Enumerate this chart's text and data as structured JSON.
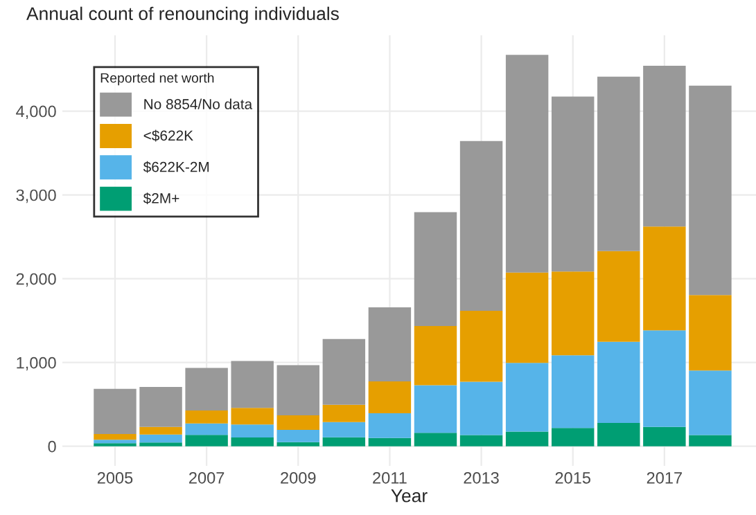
{
  "chart_data": {
    "type": "bar",
    "title": "Annual count of renouncing individuals",
    "xlabel": "Year",
    "legend_title": "Reported net worth",
    "x": [
      2005,
      2006,
      2007,
      2008,
      2009,
      2010,
      2011,
      2012,
      2013,
      2014,
      2015,
      2016,
      2017,
      2018
    ],
    "stacked": true,
    "series": [
      {
        "name": "$2M+",
        "color": "#009e73",
        "values": [
          36,
          44,
          135,
          105,
          50,
          107,
          99,
          161,
          133,
          174,
          218,
          278,
          231,
          133
        ]
      },
      {
        "name": "$622K-2M",
        "color": "#56b4e9",
        "values": [
          41,
          96,
          138,
          154,
          146,
          182,
          295,
          567,
          636,
          820,
          867,
          969,
          1152,
          772
        ]
      },
      {
        "name": "<$622K",
        "color": "#e69f00",
        "values": [
          69,
          91,
          154,
          198,
          173,
          207,
          380,
          706,
          848,
          1079,
          1000,
          1082,
          1240,
          899
        ]
      },
      {
        "name": "No 8854/No data",
        "color": "#999999",
        "values": [
          540,
          477,
          509,
          560,
          600,
          783,
          885,
          1360,
          2025,
          2598,
          2089,
          2082,
          1918,
          2500
        ]
      }
    ],
    "xlim": [
      2003.85,
      2019.0
    ],
    "xticks": [
      2005,
      2007,
      2009,
      2011,
      2013,
      2015,
      2017
    ],
    "ylim": [
      -234,
      4905
    ],
    "yticks": [
      0,
      {
        "value": 1000,
        "label": "1,000"
      },
      {
        "value": 2000,
        "label": "2,000"
      },
      {
        "value": 3000,
        "label": "3,000"
      },
      {
        "value": 4000,
        "label": "4,000"
      }
    ],
    "grid": true,
    "legend": "top left"
  }
}
